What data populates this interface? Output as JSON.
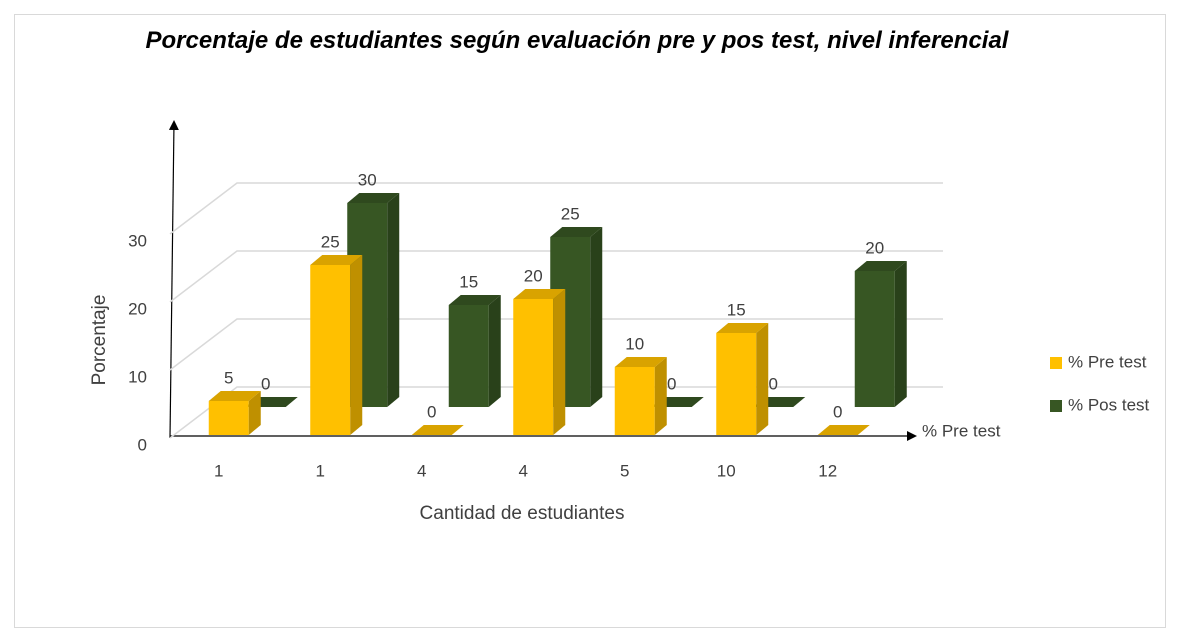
{
  "chart_data": {
    "type": "bar3d",
    "title": "Porcentaje de estudiantes según evaluación pre y pos test, nivel inferencial",
    "x_label": "Cantidad de estudiantes",
    "y_label": "Porcentaje",
    "depth_label": "% Pre test",
    "categories": [
      "1",
      "1",
      "4",
      "4",
      "5",
      "10",
      "12"
    ],
    "series": [
      {
        "name": "% Pre test",
        "color": "#ffc000",
        "values": [
          5,
          25,
          0,
          20,
          10,
          15,
          0
        ]
      },
      {
        "name": "% Pos test",
        "color": "#375623",
        "values": [
          0,
          30,
          15,
          25,
          0,
          0,
          20
        ]
      }
    ],
    "ylim": [
      0,
      30
    ],
    "yticks": [
      0,
      10,
      20,
      30
    ],
    "grid": true,
    "legend": "right",
    "data_labels": true
  }
}
